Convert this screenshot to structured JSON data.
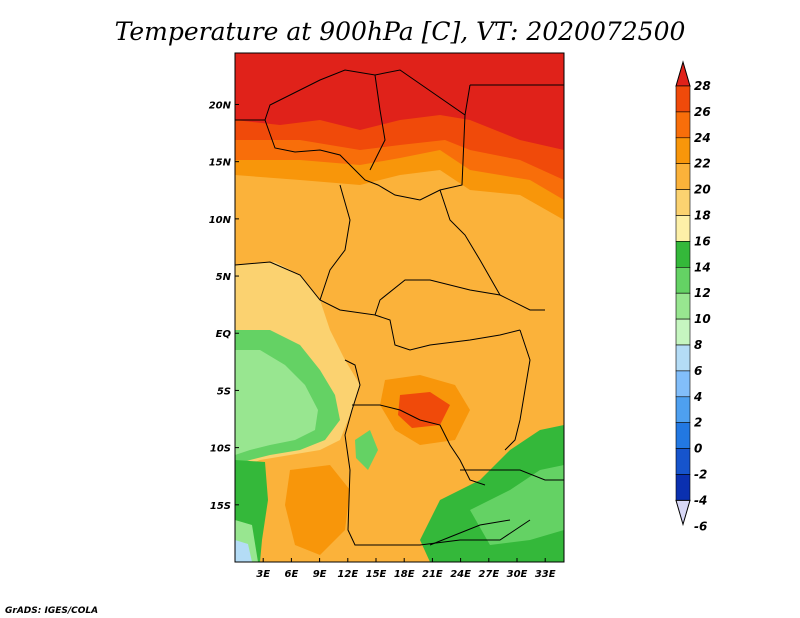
{
  "title": "Temperature at 900hPa [C], VT: 2020072500",
  "credit": "GrADS: IGES/COLA",
  "map": {
    "variable": "Temperature",
    "level": "900hPa",
    "units": "C",
    "valid_time": "2020072500",
    "lat_labels": [
      {
        "lat": 20,
        "text": "20N"
      },
      {
        "lat": 15,
        "text": "15N"
      },
      {
        "lat": 10,
        "text": "10N"
      },
      {
        "lat": 5,
        "text": "5N"
      },
      {
        "lat": 0,
        "text": "EQ"
      },
      {
        "lat": -5,
        "text": "5S"
      },
      {
        "lat": -10,
        "text": "10S"
      },
      {
        "lat": -15,
        "text": "15S"
      }
    ],
    "lon_labels": [
      {
        "lon": 3,
        "text": "3E"
      },
      {
        "lon": 6,
        "text": "6E"
      },
      {
        "lon": 9,
        "text": "9E"
      },
      {
        "lon": 12,
        "text": "12E"
      },
      {
        "lon": 15,
        "text": "15E"
      },
      {
        "lon": 18,
        "text": "18E"
      },
      {
        "lon": 21,
        "text": "21E"
      },
      {
        "lon": 24,
        "text": "24E"
      },
      {
        "lon": 27,
        "text": "27E"
      },
      {
        "lon": 30,
        "text": "30E"
      },
      {
        "lon": 33,
        "text": "33E"
      }
    ],
    "lon_range": [
      0,
      35
    ],
    "lat_range": [
      -20,
      24.5
    ]
  },
  "colorbar": {
    "labels": [
      "28",
      "26",
      "24",
      "22",
      "20",
      "18",
      "16",
      "14",
      "12",
      "10",
      "8",
      "6",
      "4",
      "2",
      "0",
      "-2",
      "-4",
      "-6"
    ],
    "colors": [
      "#e0221a",
      "#f04a0a",
      "#f86e0a",
      "#f8960a",
      "#fbb23a",
      "#fbd270",
      "#fdf0a8",
      "#34b83a",
      "#64d264",
      "#98e690",
      "#c6f6c0",
      "#b4dcf6",
      "#82befa",
      "#4ea0f0",
      "#2278e2",
      "#1654cc",
      "#0a30b0",
      "#0c0c7a"
    ]
  }
}
